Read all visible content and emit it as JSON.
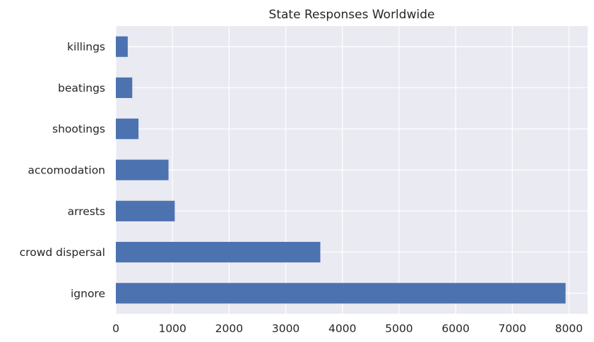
{
  "chart_data": {
    "type": "bar",
    "orientation": "horizontal",
    "title": "State Responses Worldwide",
    "xlabel": "",
    "ylabel": "",
    "categories": [
      "ignore",
      "crowd dispersal",
      "arrests",
      "accomodation",
      "shootings",
      "beatings",
      "killings"
    ],
    "values": [
      7940,
      3610,
      1040,
      930,
      400,
      290,
      210
    ],
    "xlim": [
      0,
      8330
    ],
    "xticks": [
      0,
      1000,
      2000,
      3000,
      4000,
      5000,
      6000,
      7000,
      8000
    ],
    "grid": true,
    "colors": {
      "bar": "#4c72b0",
      "plot_background": "#eaeaf2",
      "grid": "#ffffff"
    }
  }
}
